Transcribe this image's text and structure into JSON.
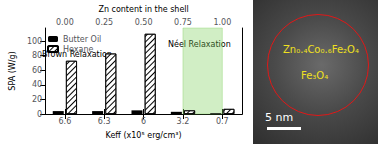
{
  "chart_data": {
    "type": "bar",
    "categories": [
      "6.6",
      "6.3",
      "6",
      "3.2",
      "0.7"
    ],
    "x_label": "Keff (x10⁵ erg/cm³)",
    "x2_categories": [
      "0.00",
      "0.25",
      "0.50",
      "0.75",
      "1.00"
    ],
    "x2_label": "Zn content in the shell",
    "y_label": "SPA (W/g)",
    "ylim": [
      0,
      118
    ],
    "yticks": [
      0,
      20,
      40,
      60,
      80,
      100
    ],
    "series": [
      {
        "name": "Butter Oil",
        "color": "#000000",
        "values": [
          4,
          4,
          5,
          3,
          1
        ]
      },
      {
        "name": "Hexane",
        "color": "#000000",
        "values": [
          73,
          83,
          110,
          5,
          7
        ],
        "marker": "hatch"
      }
    ],
    "annotations": [
      "Brown Relaxation",
      "Néel Relaxation"
    ],
    "shaded_region": {
      "from": "3.2",
      "to": "0.7",
      "color": "#7ccf5a"
    },
    "legend": "upper left",
    "grid": false
  },
  "image": {
    "labels": [
      "Zn₀.₄Co₀.₆Fe₂O₄",
      "Fe₃O₄"
    ],
    "scale_bar": "5 nm"
  }
}
